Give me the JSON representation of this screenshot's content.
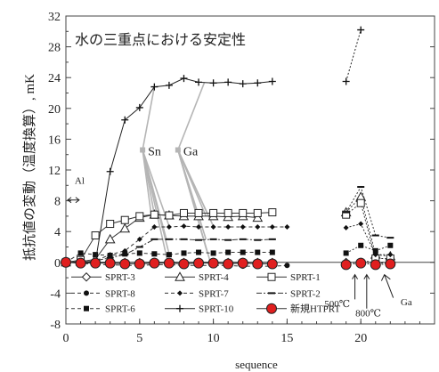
{
  "chart_data": {
    "type": "line",
    "title": "水の三重点における安定性",
    "xlabel": "sequence",
    "ylabel": "抵抗値の変動（温度換算）, mK",
    "xlim": [
      0,
      25
    ],
    "ylim": [
      -8,
      32
    ],
    "xticks": [
      "0",
      "5",
      "10",
      "15",
      "20"
    ],
    "yticks": [
      "-8",
      "-4",
      "0",
      "4",
      "8",
      "12",
      "16",
      "20",
      "24",
      "28",
      "32"
    ],
    "grid": false,
    "legend_position": "bottom-left inside",
    "annotations": {
      "al": "Al",
      "sn": "Sn",
      "ga": "Ga",
      "t500": "500℃",
      "t800": "800℃",
      "ga_low": "Ga"
    },
    "series": [
      {
        "name": "SPRT-3",
        "marker": "diamond-open",
        "line": "solid",
        "x": [
          0,
          1,
          2,
          3,
          4,
          5,
          6,
          7,
          8,
          9,
          10,
          11,
          12,
          13,
          14,
          19,
          20,
          21,
          22
        ],
        "y": [
          0,
          0,
          0,
          0,
          0,
          0,
          0,
          0,
          0,
          0,
          0,
          0,
          0,
          0,
          0,
          0,
          0,
          0,
          0
        ]
      },
      {
        "name": "SPRT-4",
        "marker": "triangle-open",
        "line": "solid",
        "x": [
          0,
          1,
          2,
          3,
          4,
          5,
          6,
          7,
          8,
          9,
          10,
          11,
          12,
          13,
          19,
          20,
          21,
          22
        ],
        "y": [
          0,
          0.1,
          0.4,
          3.0,
          4.4,
          5.8,
          6.2,
          6.1,
          6.0,
          6.0,
          6.0,
          5.9,
          6.0,
          5.8,
          6.5,
          8.5,
          1.0,
          0.8
        ]
      },
      {
        "name": "SPRT-1",
        "marker": "square-open",
        "line": "solid",
        "x": [
          0,
          1,
          2,
          3,
          4,
          5,
          6,
          7,
          8,
          9,
          10,
          11,
          12,
          13,
          14,
          19,
          20,
          21,
          22
        ],
        "y": [
          0,
          0.3,
          3.5,
          5.0,
          5.5,
          6.0,
          6.2,
          6.1,
          6.4,
          6.4,
          6.4,
          6.4,
          6.4,
          6.4,
          6.5,
          6.2,
          7.7,
          0.5,
          0.5
        ]
      },
      {
        "name": "SPRT-8",
        "marker": "circle-filled",
        "line": "dash",
        "x": [
          0,
          1,
          2,
          3,
          4,
          5,
          6,
          7,
          8,
          9,
          10,
          11,
          12,
          13,
          14,
          15,
          19,
          20,
          21,
          22
        ],
        "y": [
          0,
          -0.1,
          -0.3,
          -0.3,
          -0.4,
          -0.4,
          -0.3,
          -0.3,
          -0.4,
          -0.4,
          -0.4,
          -0.4,
          -0.5,
          -0.5,
          -0.5,
          -0.4,
          -0.3,
          0.2,
          0.0,
          -0.2
        ]
      },
      {
        "name": "SPRT-7",
        "marker": "dot-filled",
        "line": "dash",
        "x": [
          0,
          1,
          2,
          3,
          4,
          5,
          6,
          7,
          8,
          9,
          10,
          11,
          12,
          13,
          14,
          15,
          19,
          20,
          21,
          22
        ],
        "y": [
          0,
          0,
          0.2,
          1.0,
          1.5,
          3.0,
          4.6,
          4.6,
          4.7,
          4.6,
          4.6,
          4.6,
          4.6,
          4.6,
          4.6,
          4.6,
          4.5,
          5.0,
          1.0,
          1.0
        ]
      },
      {
        "name": "SPRT-2",
        "marker": "dash-filled",
        "line": "dashdot",
        "x": [
          0,
          1,
          2,
          3,
          4,
          5,
          6,
          7,
          8,
          9,
          10,
          11,
          12,
          13,
          14,
          19,
          20,
          21,
          22
        ],
        "y": [
          0,
          0,
          0.2,
          0.6,
          1.0,
          2.0,
          3.0,
          3.0,
          3.0,
          2.9,
          3.0,
          2.9,
          3.0,
          2.9,
          3.0,
          6.5,
          9.8,
          3.5,
          3.2
        ]
      },
      {
        "name": "SPRT-6",
        "marker": "square-filled",
        "line": "dash",
        "x": [
          0,
          1,
          2,
          3,
          4,
          5,
          6,
          7,
          8,
          9,
          10,
          11,
          12,
          13,
          14,
          19,
          20,
          21,
          22
        ],
        "y": [
          0,
          1.2,
          1.0,
          0.9,
          1.1,
          1.2,
          1.1,
          1.0,
          1.2,
          1.3,
          1.2,
          1.3,
          1.3,
          1.3,
          1.3,
          1.2,
          2.2,
          1.5,
          2.2
        ]
      },
      {
        "name": "SPRT-10",
        "marker": "plus",
        "line": "solid",
        "x": [
          0,
          1,
          2,
          3,
          4,
          5,
          6,
          7,
          8,
          9,
          10,
          11,
          12,
          13,
          14,
          19,
          20
        ],
        "y": [
          0,
          0,
          0,
          11.8,
          18.5,
          20.1,
          22.8,
          23.0,
          23.9,
          23.4,
          23.3,
          23.4,
          23.2,
          23.3,
          23.5,
          23.5,
          30.2
        ]
      },
      {
        "name": "新規HTPRT",
        "marker": "circle-red",
        "line": "solid",
        "x": [
          0,
          1,
          2,
          3,
          4,
          5,
          6,
          7,
          8,
          9,
          10,
          11,
          12,
          13,
          14,
          19,
          20,
          21,
          22
        ],
        "y": [
          0,
          -0.1,
          -0.1,
          -0.1,
          -0.2,
          -0.2,
          -0.1,
          -0.1,
          -0.2,
          -0.1,
          -0.1,
          -0.2,
          -0.1,
          -0.2,
          -0.2,
          -0.3,
          -0.1,
          -0.3,
          -0.2
        ]
      }
    ]
  }
}
